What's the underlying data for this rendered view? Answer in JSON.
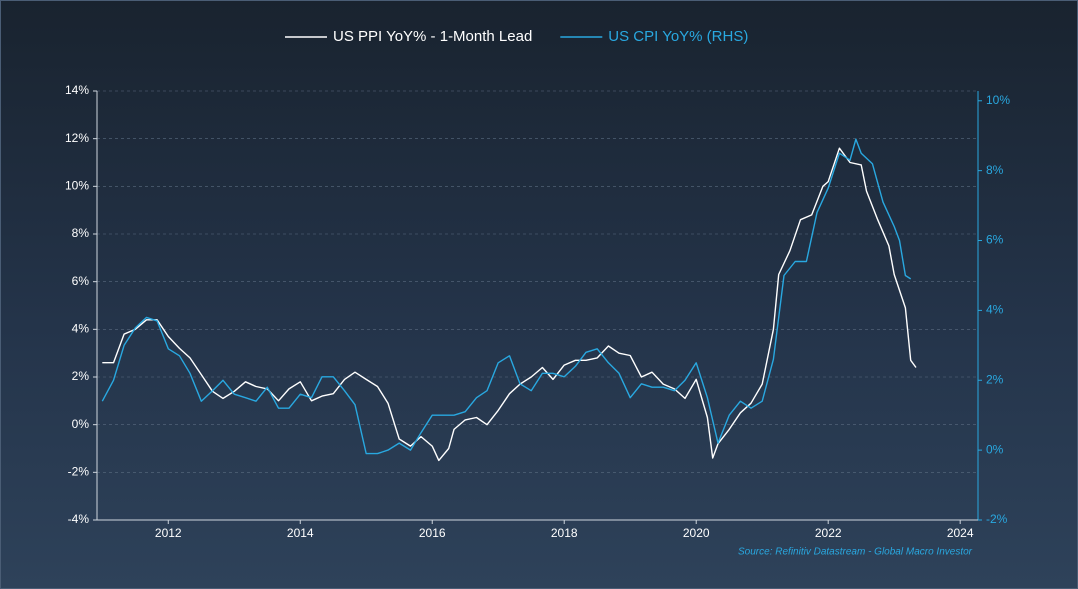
{
  "chart_data": {
    "type": "line",
    "source": "Source: Refinitiv Datastream - Global Macro Investor",
    "xlim": [
      2010.92,
      2024.27
    ],
    "xticks": [
      2012,
      2014,
      2016,
      2018,
      2020,
      2022,
      2024
    ],
    "ylim": [
      -4,
      14
    ],
    "yticks": [
      {
        "value": -4,
        "label": "-4%"
      },
      {
        "value": -2,
        "label": "-2%"
      },
      {
        "value": 0,
        "label": "0%"
      },
      {
        "value": 2,
        "label": "2%"
      },
      {
        "value": 4,
        "label": "4%"
      },
      {
        "value": 6,
        "label": "6%"
      },
      {
        "value": 8,
        "label": "8%"
      },
      {
        "value": 10,
        "label": "10%"
      },
      {
        "value": 12,
        "label": "12%"
      },
      {
        "value": 14,
        "label": "14%"
      }
    ],
    "y2lim": [
      -2,
      10.28
    ],
    "y2ticks": [
      {
        "value": -2,
        "label": "-2%"
      },
      {
        "value": 0,
        "label": "0%"
      },
      {
        "value": 2,
        "label": "2%"
      },
      {
        "value": 4,
        "label": "4%"
      },
      {
        "value": 6,
        "label": "6%"
      },
      {
        "value": 8,
        "label": "8%"
      },
      {
        "value": 10,
        "label": "10%"
      }
    ],
    "grid": true,
    "legend": "top",
    "series": [
      {
        "name": "US PPI YoY% - 1-Month Lead",
        "color": "#ffffff",
        "x": [
          2011.0,
          2011.17,
          2011.33,
          2011.5,
          2011.67,
          2011.83,
          2012.0,
          2012.17,
          2012.33,
          2012.5,
          2012.67,
          2012.83,
          2013.0,
          2013.17,
          2013.33,
          2013.5,
          2013.67,
          2013.83,
          2014.0,
          2014.17,
          2014.33,
          2014.5,
          2014.67,
          2014.83,
          2015.0,
          2015.17,
          2015.33,
          2015.5,
          2015.67,
          2015.83,
          2016.0,
          2016.1,
          2016.25,
          2016.33,
          2016.5,
          2016.67,
          2016.83,
          2017.0,
          2017.17,
          2017.33,
          2017.5,
          2017.67,
          2017.83,
          2018.0,
          2018.17,
          2018.33,
          2018.5,
          2018.67,
          2018.83,
          2019.0,
          2019.17,
          2019.33,
          2019.5,
          2019.67,
          2019.83,
          2020.0,
          2020.17,
          2020.25,
          2020.33,
          2020.5,
          2020.67,
          2020.83,
          2021.0,
          2021.17,
          2021.25,
          2021.42,
          2021.58,
          2021.75,
          2021.92,
          2022.0,
          2022.17,
          2022.33,
          2022.5,
          2022.58,
          2022.75,
          2022.92,
          2023.0,
          2023.17,
          2023.25,
          2023.33
        ],
        "values": [
          2.6,
          2.6,
          3.8,
          4.0,
          4.4,
          4.4,
          3.7,
          3.2,
          2.8,
          2.1,
          1.4,
          1.1,
          1.4,
          1.8,
          1.6,
          1.5,
          1.0,
          1.5,
          1.8,
          1.0,
          1.2,
          1.3,
          1.9,
          2.2,
          1.9,
          1.6,
          0.9,
          -0.6,
          -0.9,
          -0.5,
          -0.9,
          -1.5,
          -1.0,
          -0.2,
          0.2,
          0.3,
          0.0,
          0.6,
          1.3,
          1.7,
          2.0,
          2.4,
          1.9,
          2.5,
          2.7,
          2.7,
          2.8,
          3.3,
          3.0,
          2.9,
          2.0,
          2.2,
          1.7,
          1.5,
          1.1,
          1.9,
          0.3,
          -1.4,
          -0.8,
          -0.2,
          0.5,
          0.9,
          1.7,
          4.0,
          6.3,
          7.3,
          8.6,
          8.8,
          10.0,
          10.2,
          11.6,
          11.0,
          10.9,
          9.8,
          8.6,
          7.5,
          6.3,
          4.9,
          2.7,
          2.4
        ]
      },
      {
        "name": "US CPI YoY% (RHS)",
        "color": "#29a8e0",
        "axis": "y2",
        "x": [
          2011.0,
          2011.17,
          2011.33,
          2011.5,
          2011.67,
          2011.83,
          2012.0,
          2012.17,
          2012.33,
          2012.5,
          2012.67,
          2012.83,
          2013.0,
          2013.17,
          2013.33,
          2013.5,
          2013.67,
          2013.83,
          2014.0,
          2014.17,
          2014.33,
          2014.5,
          2014.67,
          2014.83,
          2015.0,
          2015.17,
          2015.33,
          2015.5,
          2015.67,
          2015.83,
          2016.0,
          2016.17,
          2016.33,
          2016.5,
          2016.67,
          2016.83,
          2017.0,
          2017.17,
          2017.33,
          2017.5,
          2017.67,
          2017.83,
          2018.0,
          2018.17,
          2018.33,
          2018.5,
          2018.67,
          2018.83,
          2019.0,
          2019.17,
          2019.33,
          2019.5,
          2019.67,
          2019.83,
          2020.0,
          2020.17,
          2020.33,
          2020.5,
          2020.67,
          2020.83,
          2021.0,
          2021.17,
          2021.33,
          2021.5,
          2021.67,
          2021.83,
          2022.0,
          2022.17,
          2022.33,
          2022.42,
          2022.5,
          2022.67,
          2022.83,
          2023.0,
          2023.08,
          2023.17,
          2023.25
        ],
        "values": [
          1.4,
          2.0,
          3.0,
          3.5,
          3.8,
          3.7,
          2.9,
          2.7,
          2.2,
          1.4,
          1.7,
          2.0,
          1.6,
          1.5,
          1.4,
          1.8,
          1.2,
          1.2,
          1.6,
          1.5,
          2.1,
          2.1,
          1.7,
          1.3,
          -0.1,
          -0.1,
          0.0,
          0.2,
          0.0,
          0.5,
          1.0,
          1.0,
          1.0,
          1.1,
          1.5,
          1.7,
          2.5,
          2.7,
          1.9,
          1.7,
          2.2,
          2.2,
          2.1,
          2.4,
          2.8,
          2.9,
          2.5,
          2.2,
          1.5,
          1.9,
          1.8,
          1.8,
          1.7,
          2.0,
          2.5,
          1.5,
          0.2,
          1.0,
          1.4,
          1.2,
          1.4,
          2.6,
          5.0,
          5.4,
          5.4,
          6.8,
          7.5,
          8.5,
          8.3,
          8.9,
          8.5,
          8.2,
          7.1,
          6.4,
          6.0,
          5.0,
          4.9
        ]
      }
    ]
  }
}
